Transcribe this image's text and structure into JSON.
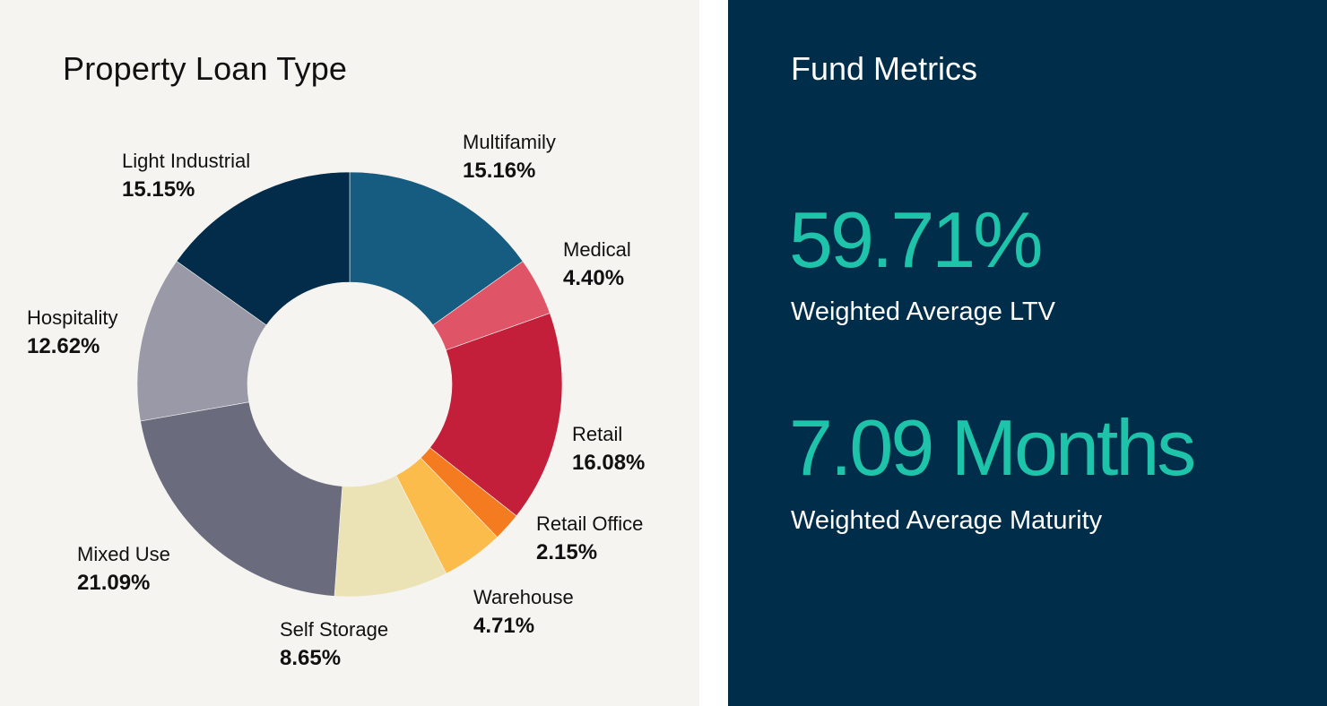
{
  "chart_data": {
    "type": "pie",
    "title": "Property Loan Type",
    "slices": [
      {
        "label": "Multifamily",
        "value": 15.16,
        "display": "15.16%",
        "color": "#165b80"
      },
      {
        "label": "Medical",
        "value": 4.4,
        "display": "4.40%",
        "color": "#e05468"
      },
      {
        "label": "Retail",
        "value": 16.08,
        "display": "16.08%",
        "color": "#c41f3a"
      },
      {
        "label": "Retail Office",
        "value": 2.15,
        "display": "2.15%",
        "color": "#f47b20"
      },
      {
        "label": "Warehouse",
        "value": 4.71,
        "display": "4.71%",
        "color": "#fbbc4c"
      },
      {
        "label": "Self Storage",
        "value": 8.65,
        "display": "8.65%",
        "color": "#ebe2b6"
      },
      {
        "label": "Mixed Use",
        "value": 21.09,
        "display": "21.09%",
        "color": "#6b6b7e"
      },
      {
        "label": "Hospitality",
        "value": 12.62,
        "display": "12.62%",
        "color": "#9a99a7"
      },
      {
        "label": "Light Industrial",
        "value": 15.15,
        "display": "15.15%",
        "color": "#032c4a"
      }
    ]
  },
  "fund_metrics": {
    "title": "Fund Metrics",
    "ltv_value": "59.71%",
    "ltv_label": "Weighted Average LTV",
    "maturity_value": "7.09 Months",
    "maturity_label": "Weighted Average Maturity"
  },
  "colors": {
    "left_background": "#f5f4f0",
    "right_background": "#002d49",
    "accent": "#1dc4aa"
  }
}
